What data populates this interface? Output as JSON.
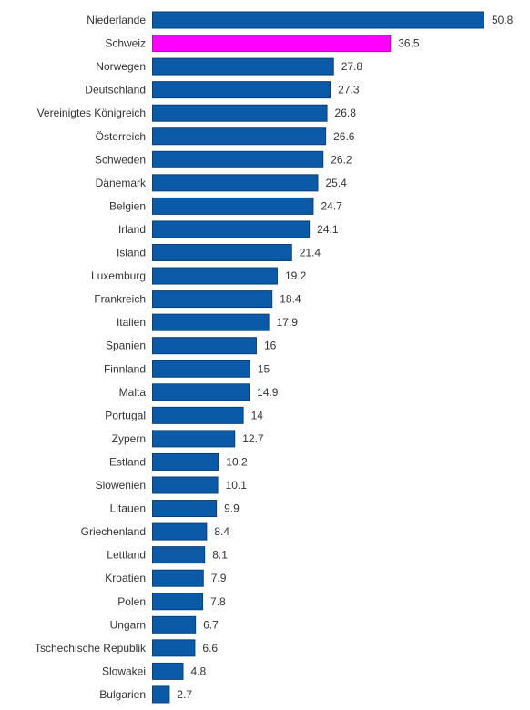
{
  "chart_data": {
    "type": "bar",
    "orientation": "horizontal",
    "categories": [
      "Niederlande",
      "Schweiz",
      "Norwegen",
      "Deutschland",
      "Vereinigtes Königreich",
      "Österreich",
      "Schweden",
      "Dänemark",
      "Belgien",
      "Irland",
      "Island",
      "Luxemburg",
      "Frankreich",
      "Italien",
      "Spanien",
      "Finnland",
      "Malta",
      "Portugal",
      "Zypern",
      "Estland",
      "Slowenien",
      "Litauen",
      "Griechenland",
      "Lettland",
      "Kroatien",
      "Polen",
      "Ungarn",
      "Tschechische Republik",
      "Slowakei",
      "Bulgarien"
    ],
    "values": [
      50.8,
      36.5,
      27.8,
      27.3,
      26.8,
      26.6,
      26.2,
      25.4,
      24.7,
      24.1,
      21.4,
      19.2,
      18.4,
      17.9,
      16,
      15,
      14.9,
      14,
      12.7,
      10.2,
      10.1,
      9.9,
      8.4,
      8.1,
      7.9,
      7.8,
      6.7,
      6.6,
      4.8,
      2.7
    ],
    "value_labels": [
      "50.8",
      "36.5",
      "27.8",
      "27.3",
      "26.8",
      "26.6",
      "26.2",
      "25.4",
      "24.7",
      "24.1",
      "21.4",
      "19.2",
      "18.4",
      "17.9",
      "16",
      "15",
      "14.9",
      "14",
      "12.7",
      "10.2",
      "10.1",
      "9.9",
      "8.4",
      "8.1",
      "7.9",
      "7.8",
      "6.7",
      "6.6",
      "4.8",
      "2.7"
    ],
    "highlight_category": "Schweiz",
    "colors": {
      "bar": "#0a5aa8",
      "bar_border": "#0b3f78",
      "highlight": "#ff00ff",
      "highlight_border": "#c800c8",
      "label": "#333333"
    },
    "xlim": [
      0,
      50.8
    ],
    "grid": false,
    "legend": "none"
  }
}
